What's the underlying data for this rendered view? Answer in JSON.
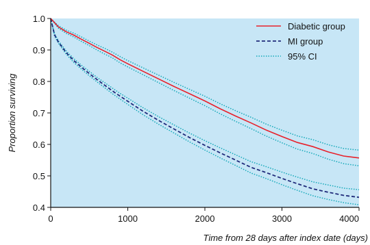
{
  "chart_data": {
    "type": "line",
    "title": "",
    "xlabel": "Time from 28 days after index date (days)",
    "ylabel": "Proportion surviving",
    "xlim": [
      0,
      4000
    ],
    "ylim": [
      0.4,
      1.0
    ],
    "xticks": [
      0,
      1000,
      2000,
      3000,
      4000
    ],
    "yticks": [
      0.4,
      0.5,
      0.6,
      0.7,
      0.8,
      0.9,
      1.0
    ],
    "xtick_labels": [
      "0",
      "1000",
      "2000",
      "3000",
      "4000"
    ],
    "ytick_labels": [
      "0.4",
      "0.5",
      "0.6",
      "0.7",
      "0.8",
      "0.9",
      "1.0"
    ],
    "grid": false,
    "legend_position": "top-right",
    "colors": {
      "background": "#c7e6f6",
      "diabetic": "#e8202a",
      "mi": "#1f2a7a",
      "ci": "#12a8b8"
    },
    "series": [
      {
        "name": "Diabetic group",
        "style": "solid",
        "x": [
          0,
          100,
          200,
          300,
          400,
          500,
          600,
          700,
          800,
          900,
          1000,
          1200,
          1400,
          1600,
          1800,
          2000,
          2200,
          2400,
          2600,
          2800,
          3000,
          3200,
          3400,
          3600,
          3800,
          4000
        ],
        "y": [
          1.0,
          0.973,
          0.958,
          0.947,
          0.934,
          0.921,
          0.908,
          0.896,
          0.884,
          0.869,
          0.856,
          0.832,
          0.808,
          0.784,
          0.761,
          0.738,
          0.713,
          0.69,
          0.668,
          0.645,
          0.625,
          0.606,
          0.593,
          0.576,
          0.563,
          0.557
        ]
      },
      {
        "name": "MI group",
        "style": "dashed",
        "x": [
          0,
          50,
          100,
          200,
          300,
          400,
          500,
          600,
          700,
          800,
          900,
          1000,
          1200,
          1400,
          1600,
          1800,
          2000,
          2200,
          2400,
          2600,
          2800,
          3000,
          3200,
          3400,
          3600,
          3800,
          4000
        ],
        "y": [
          1.0,
          0.948,
          0.925,
          0.892,
          0.866,
          0.845,
          0.825,
          0.806,
          0.788,
          0.77,
          0.753,
          0.737,
          0.705,
          0.676,
          0.649,
          0.622,
          0.597,
          0.573,
          0.55,
          0.527,
          0.51,
          0.492,
          0.475,
          0.459,
          0.448,
          0.438,
          0.432
        ]
      },
      {
        "name": "95% CI",
        "style": "dotted",
        "bands": [
          {
            "x": [
              0,
              100,
              200,
              300,
              400,
              500,
              600,
              700,
              800,
              900,
              1000,
              1200,
              1400,
              1600,
              1800,
              2000,
              2200,
              2400,
              2600,
              2800,
              3000,
              3200,
              3400,
              3600,
              3800,
              4000
            ],
            "upper": [
              1.0,
              0.977,
              0.963,
              0.953,
              0.941,
              0.928,
              0.916,
              0.905,
              0.893,
              0.879,
              0.866,
              0.843,
              0.82,
              0.797,
              0.775,
              0.753,
              0.729,
              0.707,
              0.686,
              0.664,
              0.645,
              0.627,
              0.615,
              0.599,
              0.587,
              0.582
            ],
            "lower": [
              1.0,
              0.969,
              0.953,
              0.941,
              0.927,
              0.914,
              0.9,
              0.887,
              0.875,
              0.859,
              0.846,
              0.821,
              0.796,
              0.771,
              0.747,
              0.723,
              0.697,
              0.673,
              0.65,
              0.626,
              0.605,
              0.585,
              0.571,
              0.553,
              0.539,
              0.532
            ]
          },
          {
            "x": [
              0,
              50,
              100,
              200,
              300,
              400,
              500,
              600,
              700,
              800,
              900,
              1000,
              1200,
              1400,
              1600,
              1800,
              2000,
              2200,
              2400,
              2600,
              2800,
              3000,
              3200,
              3400,
              3600,
              3800,
              4000
            ],
            "upper": [
              1.0,
              0.952,
              0.929,
              0.897,
              0.872,
              0.851,
              0.832,
              0.813,
              0.796,
              0.779,
              0.762,
              0.747,
              0.716,
              0.688,
              0.662,
              0.636,
              0.612,
              0.589,
              0.567,
              0.545,
              0.529,
              0.512,
              0.496,
              0.481,
              0.471,
              0.461,
              0.456
            ],
            "lower": [
              1.0,
              0.944,
              0.921,
              0.887,
              0.86,
              0.839,
              0.818,
              0.799,
              0.78,
              0.761,
              0.744,
              0.727,
              0.694,
              0.664,
              0.636,
              0.608,
              0.582,
              0.557,
              0.533,
              0.509,
              0.491,
              0.472,
              0.454,
              0.437,
              0.425,
              0.415,
              0.408
            ]
          }
        ]
      }
    ]
  }
}
